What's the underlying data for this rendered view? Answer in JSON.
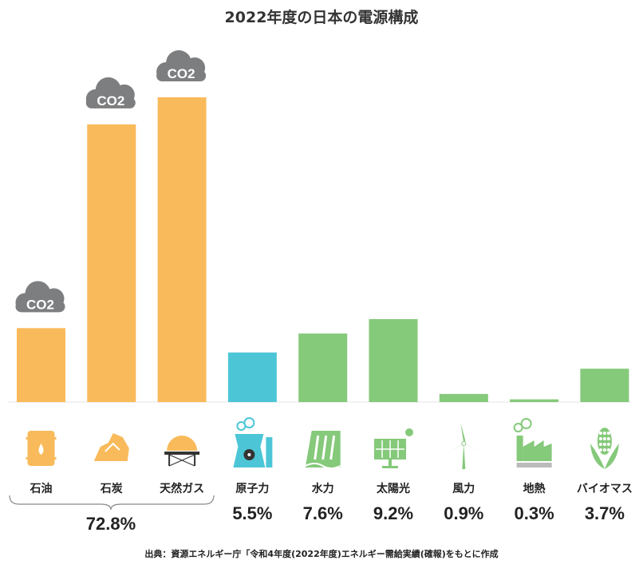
{
  "chart_data": {
    "type": "bar",
    "title": "2022年度の日本の電源構成",
    "categories": [
      "石油",
      "石炭",
      "天然ガス",
      "原子力",
      "水力",
      "太陽光",
      "風力",
      "地熱",
      "バイオマス"
    ],
    "values": [
      8.2,
      30.8,
      33.8,
      5.5,
      7.6,
      9.2,
      0.9,
      0.3,
      3.7
    ],
    "value_labels": [
      "",
      "",
      "",
      "5.5%",
      "7.6%",
      "9.2%",
      "0.9%",
      "0.3%",
      "3.7%"
    ],
    "group_label": "72.8%",
    "bar_colors": [
      "#F9BA5B",
      "#F9BA5B",
      "#F9BA5B",
      "#4CC6D6",
      "#85C97A",
      "#85C97A",
      "#85C97A",
      "#85C97A",
      "#85C97A"
    ],
    "icons": [
      "oil-barrel-icon",
      "coal-icon",
      "gas-tank-icon",
      "nuclear-plant-icon",
      "hydro-dam-icon",
      "solar-panel-icon",
      "wind-turbine-icon",
      "geothermal-plant-icon",
      "biomass-corn-icon"
    ],
    "co2_badge": "CO2",
    "co2_on": [
      true,
      true,
      true,
      false,
      false,
      false,
      false,
      false,
      false
    ],
    "co2_color": "#7D7E80",
    "ylim": [
      0,
      35
    ],
    "grid": false,
    "source": "出典：資源エネルギー庁「令和4年度(2022年度)エネルギー需給実績(確報)をもとに作成"
  }
}
